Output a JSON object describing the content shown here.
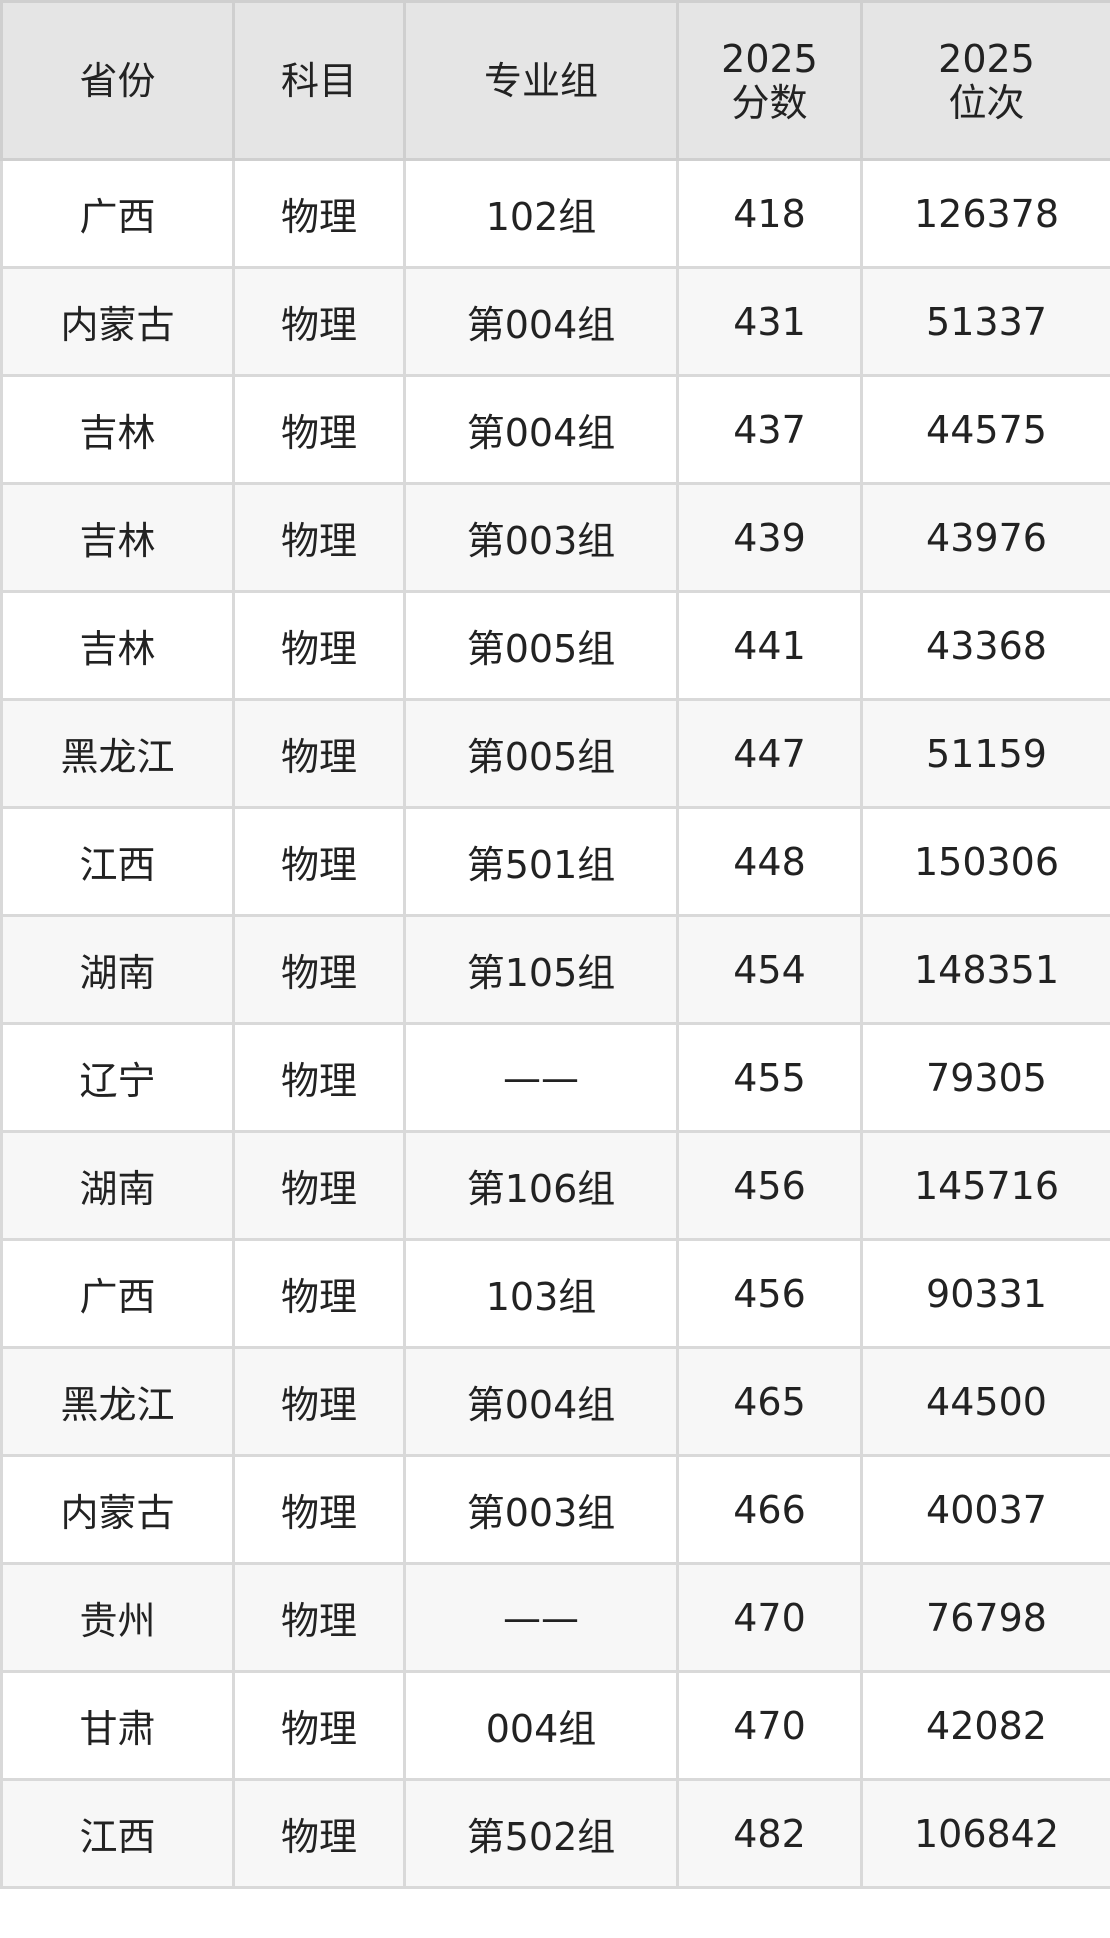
{
  "table": {
    "headers": [
      {
        "lines": [
          "省份"
        ]
      },
      {
        "lines": [
          "科目"
        ]
      },
      {
        "lines": [
          "专业组"
        ]
      },
      {
        "lines": [
          "2025",
          "分数"
        ]
      },
      {
        "lines": [
          "2025",
          "位次"
        ]
      }
    ],
    "rows": [
      [
        "广西",
        "物理",
        "102组",
        "418",
        "126378"
      ],
      [
        "内蒙古",
        "物理",
        "第004组",
        "431",
        "51337"
      ],
      [
        "吉林",
        "物理",
        "第004组",
        "437",
        "44575"
      ],
      [
        "吉林",
        "物理",
        "第003组",
        "439",
        "43976"
      ],
      [
        "吉林",
        "物理",
        "第005组",
        "441",
        "43368"
      ],
      [
        "黑龙江",
        "物理",
        "第005组",
        "447",
        "51159"
      ],
      [
        "江西",
        "物理",
        "第501组",
        "448",
        "150306"
      ],
      [
        "湖南",
        "物理",
        "第105组",
        "454",
        "148351"
      ],
      [
        "辽宁",
        "物理",
        "——",
        "455",
        "79305"
      ],
      [
        "湖南",
        "物理",
        "第106组",
        "456",
        "145716"
      ],
      [
        "广西",
        "物理",
        "103组",
        "456",
        "90331"
      ],
      [
        "黑龙江",
        "物理",
        "第004组",
        "465",
        "44500"
      ],
      [
        "内蒙古",
        "物理",
        "第003组",
        "466",
        "40037"
      ],
      [
        "贵州",
        "物理",
        "——",
        "470",
        "76798"
      ],
      [
        "甘肃",
        "物理",
        "004组",
        "470",
        "42082"
      ],
      [
        "江西",
        "物理",
        "第502组",
        "482",
        "106842"
      ]
    ]
  }
}
